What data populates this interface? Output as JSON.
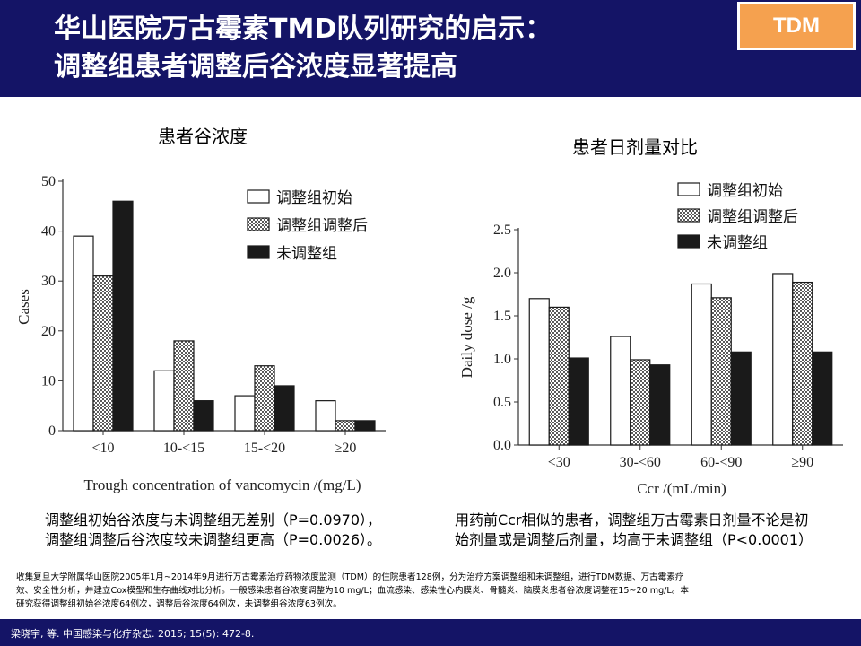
{
  "header": {
    "title_line1": "华山医院万古霉素TMD队列研究的启示：",
    "title_line2": "调整组患者调整后谷浓度显著提高",
    "badge": "TDM"
  },
  "colors": {
    "header_bg": "#141466",
    "badge_bg": "#f5a14f"
  },
  "left_chart": {
    "heading": "患者谷浓度",
    "note_line1": "调整组初始谷浓度与未调整组无差别（P=0.0970），",
    "note_line2": "调整组调整后谷浓度较未调整组更高（P=0.0026）。"
  },
  "right_chart": {
    "heading": "患者日剂量对比",
    "note_line1": "用药前Ccr相似的患者，调整组万古霉素日剂量不论是初",
    "note_line2": "始剂量或是调整后剂量，均高于未调整组（P<0.0001）"
  },
  "chart_data": [
    {
      "type": "bar",
      "title": "患者谷浓度",
      "categories": [
        "<10",
        "10-<15",
        "15-<20",
        "≥20"
      ],
      "xlabel": "Trough  concentration of vancomycin /(mg/L)",
      "ylabel": "Cases",
      "ylim": [
        0,
        50
      ],
      "yticks": [
        0,
        10,
        20,
        30,
        40,
        50
      ],
      "legend_position": "top-right",
      "series": [
        {
          "name": "调整组初始",
          "pattern": "white",
          "values": [
            39,
            12,
            7,
            6
          ]
        },
        {
          "name": "调整组调整后",
          "pattern": "checker",
          "values": [
            31,
            18,
            13,
            2
          ]
        },
        {
          "name": "未调整组",
          "pattern": "black",
          "values": [
            46,
            6,
            9,
            2
          ]
        }
      ]
    },
    {
      "type": "bar",
      "title": "患者日剂量对比",
      "categories": [
        "<30",
        "30-<60",
        "60-<90",
        "≥90"
      ],
      "xlabel": "Ccr /(mL/min)",
      "ylabel": "Daily dose /g",
      "ylim": [
        0,
        2.5
      ],
      "yticks": [
        "0.0",
        "0.5",
        "1.0",
        "1.5",
        "2.0",
        "2.5"
      ],
      "legend_position": "top-right",
      "series": [
        {
          "name": "调整组初始",
          "pattern": "white",
          "values": [
            1.7,
            1.26,
            1.87,
            1.99
          ]
        },
        {
          "name": "调整组调整后",
          "pattern": "checker",
          "values": [
            1.6,
            0.99,
            1.71,
            1.89
          ]
        },
        {
          "name": "未调整组",
          "pattern": "black",
          "values": [
            1.01,
            0.93,
            1.08,
            1.08
          ]
        }
      ]
    }
  ],
  "footnote": {
    "line1": "收集复旦大学附属华山医院2005年1月~2014年9月进行万古霉素治疗药物浓度监测（TDM）的住院患者128例，分为治疗方案调整组和未调整组，进行TDM数据、万古霉素疗",
    "line2": "效、安全性分析，并建立Cox模型和生存曲线对比分析。一般感染患者谷浓度调整为10 mg/L；血流感染、感染性心内膜炎、骨髓炎、脑膜炎患者谷浓度调整在15~20 mg/L。本",
    "line3": "研究获得调整组初始谷浓度64例次，调整后谷浓度64例次，未调整组谷浓度63例次。"
  },
  "footer": {
    "citation": "梁晓宇, 等. 中国感染与化疗杂志. 2015; 15(5): 472-8."
  }
}
